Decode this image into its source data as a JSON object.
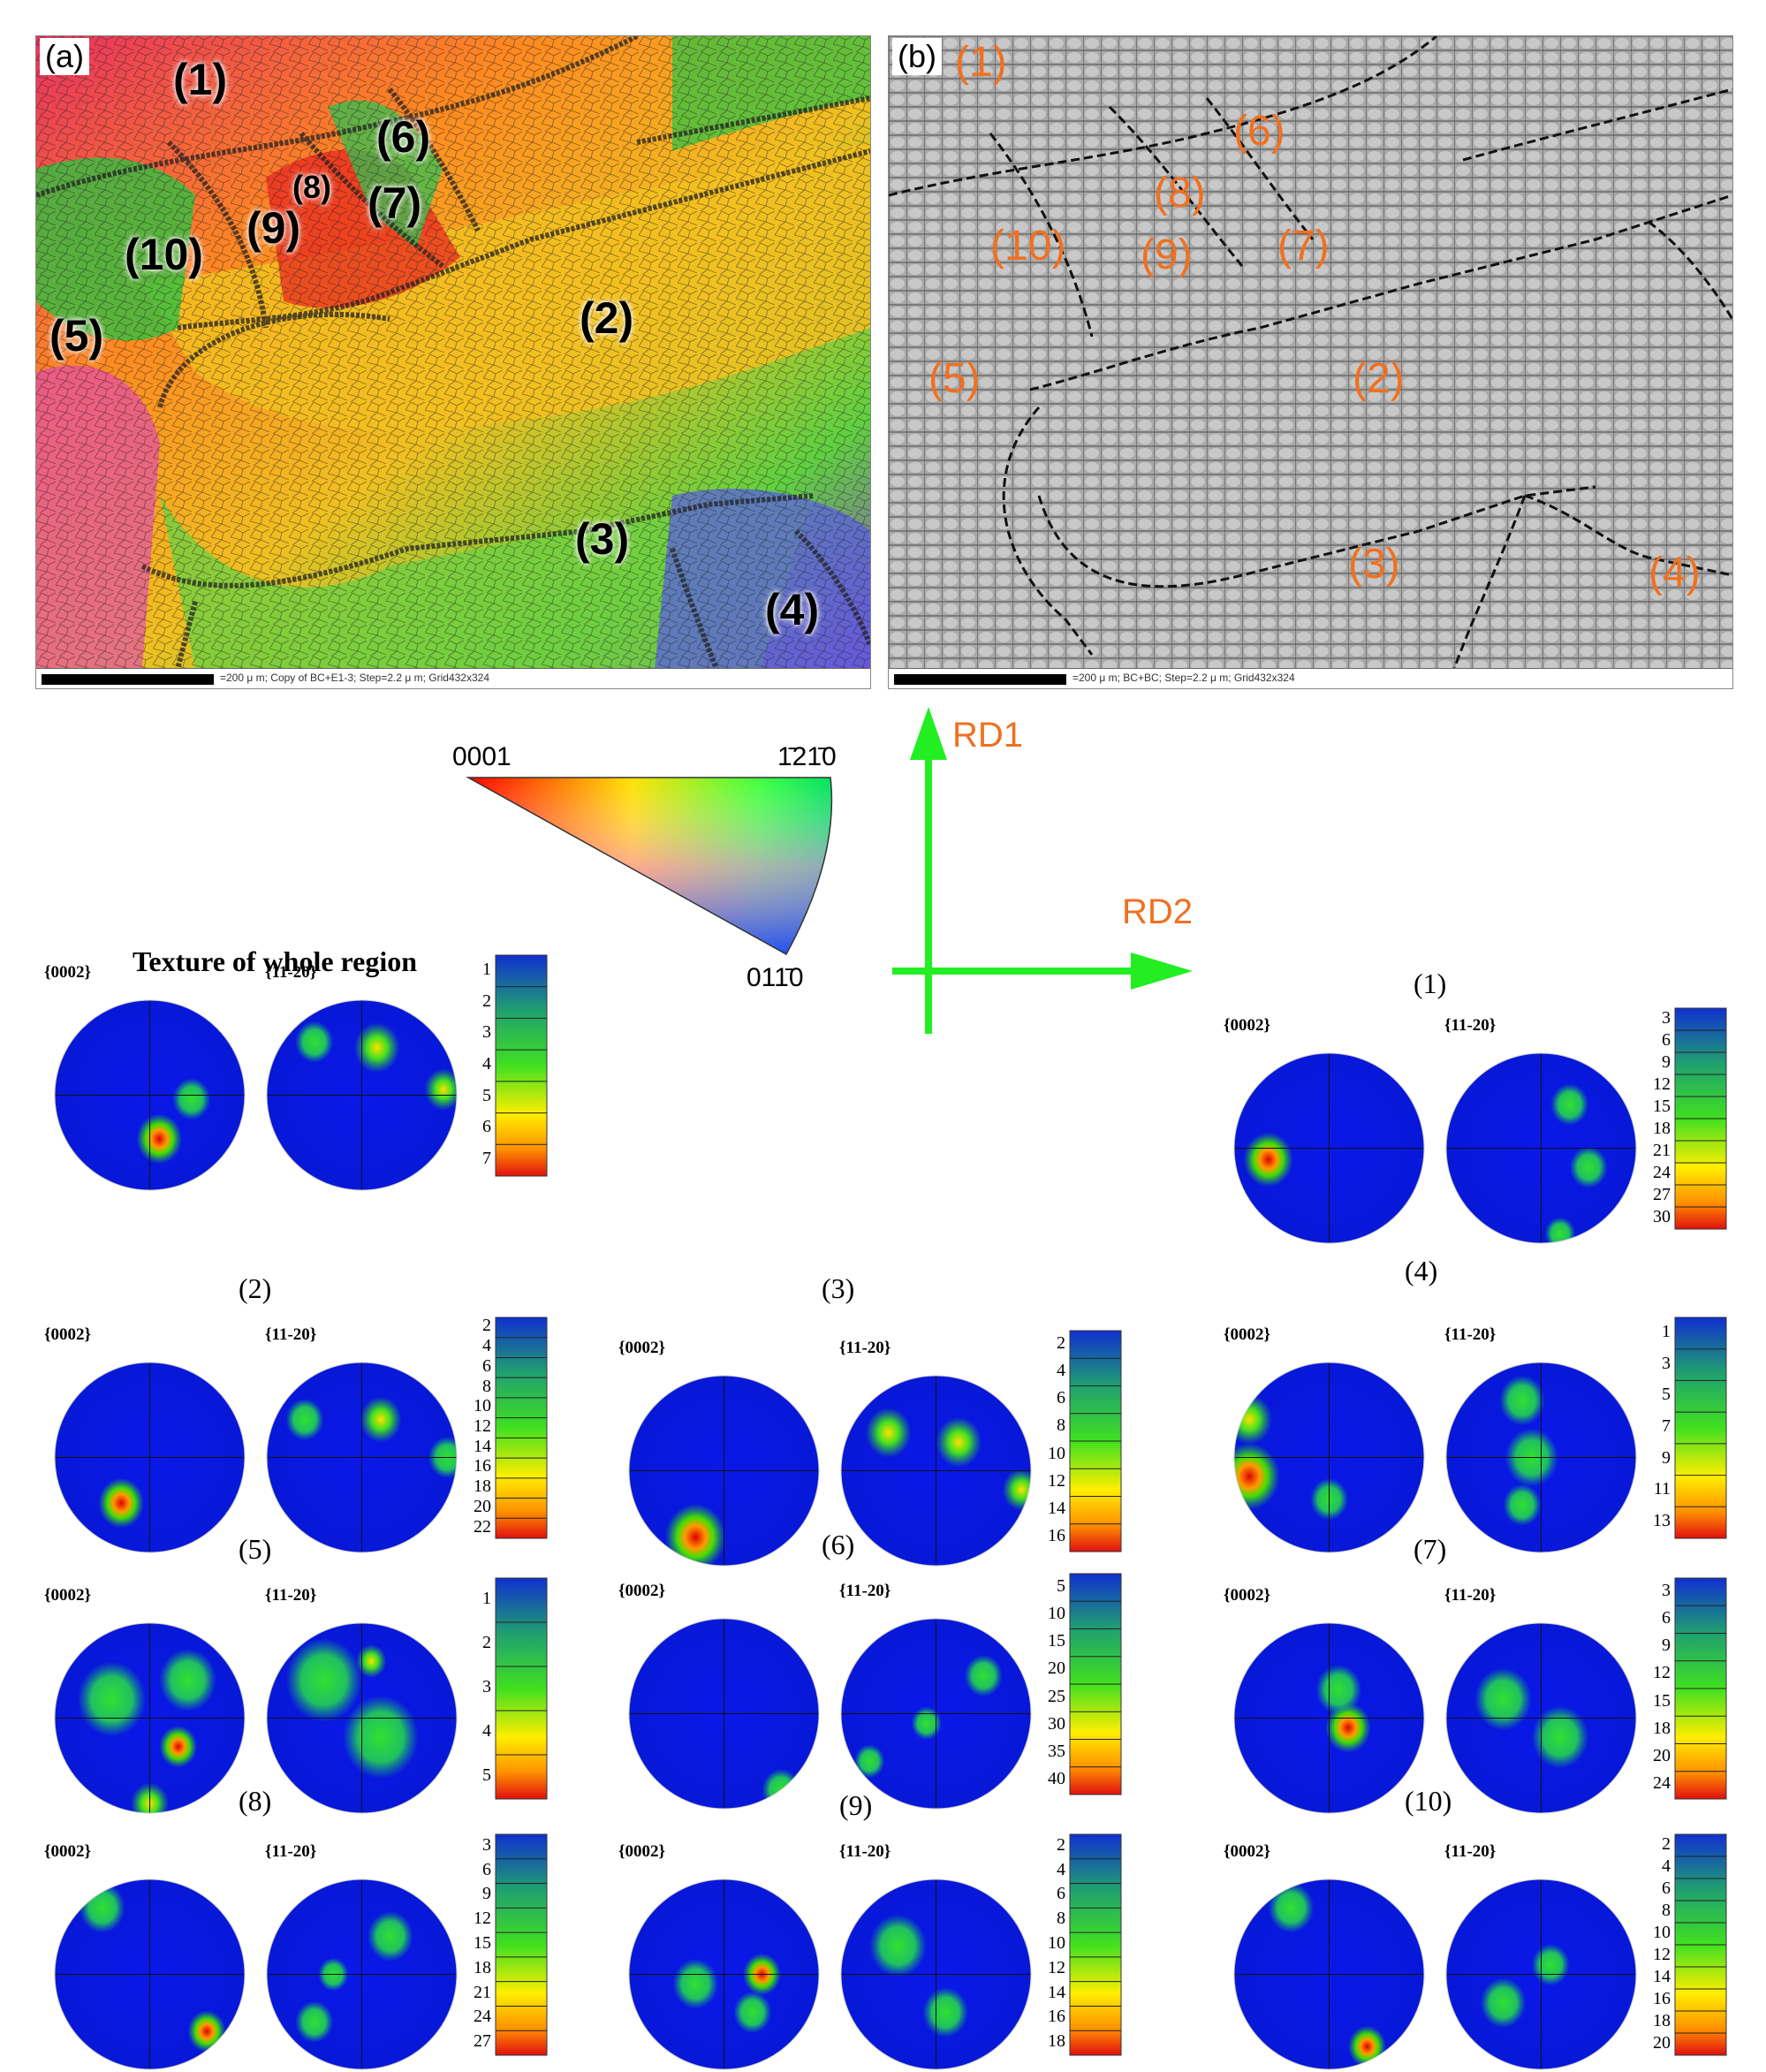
{
  "panels": {
    "a": {
      "label": "(a)",
      "scale_text": "=200 μ m; Copy of BC+E1-3; Step=2.2 μ m; Grid432x324",
      "regions": [
        "(1)",
        "(2)",
        "(3)",
        "(4)",
        "(5)",
        "(6)",
        "(7)",
        "(8)",
        "(9)",
        "(10)"
      ]
    },
    "b": {
      "label": "(b)",
      "scale_text": "=200 μ m; BC+BC; Step=2.2 μ m; Grid432x324",
      "regions": [
        "(1)",
        "(2)",
        "(3)",
        "(4)",
        "(5)",
        "(6)",
        "(7)",
        "(8)",
        "(9)",
        "(10)"
      ]
    }
  },
  "ipf_key": {
    "corner_0001": "0001",
    "corner_1210": "1̄21̄0",
    "corner_0110": "011̄0"
  },
  "axes": {
    "rd1": "RD1",
    "rd2": "RD2"
  },
  "pole_labels": {
    "basal": "{0002}",
    "prism": "{11-20}"
  },
  "groups": [
    {
      "id": "whole",
      "title": "Texture of whole region",
      "ticks": [
        "1",
        "2",
        "3",
        "4",
        "5",
        "6",
        "7"
      ]
    },
    {
      "id": "1",
      "title": "(1)",
      "ticks": [
        "3",
        "6",
        "9",
        "12",
        "15",
        "18",
        "21",
        "24",
        "27",
        "30"
      ]
    },
    {
      "id": "2",
      "title": "(2)",
      "ticks": [
        "2",
        "4",
        "6",
        "8",
        "10",
        "12",
        "14",
        "16",
        "18",
        "20",
        "22"
      ]
    },
    {
      "id": "3",
      "title": "(3)",
      "ticks": [
        "2",
        "4",
        "6",
        "8",
        "10",
        "12",
        "14",
        "16"
      ]
    },
    {
      "id": "4",
      "title": "(4)",
      "ticks": [
        "1",
        "3",
        "5",
        "7",
        "9",
        "11",
        "13"
      ]
    },
    {
      "id": "5",
      "title": "(5)",
      "ticks": [
        "1",
        "2",
        "3",
        "4",
        "5"
      ]
    },
    {
      "id": "6",
      "title": "(6)",
      "ticks": [
        "5",
        "10",
        "15",
        "20",
        "25",
        "30",
        "35",
        "40"
      ]
    },
    {
      "id": "7",
      "title": "(7)",
      "ticks": [
        "3",
        "6",
        "9",
        "12",
        "15",
        "18",
        "20",
        "24"
      ]
    },
    {
      "id": "8",
      "title": "(8)",
      "ticks": [
        "3",
        "6",
        "9",
        "12",
        "15",
        "18",
        "21",
        "24",
        "27"
      ]
    },
    {
      "id": "9",
      "title": "(9)",
      "ticks": [
        "2",
        "4",
        "6",
        "8",
        "10",
        "12",
        "14",
        "16",
        "18"
      ]
    },
    {
      "id": "10",
      "title": "(10)",
      "ticks": [
        "2",
        "4",
        "6",
        "8",
        "10",
        "12",
        "14",
        "16",
        "18",
        "20"
      ]
    }
  ],
  "colors": {
    "axis_arrow": "#22ee22",
    "orange_label": "#f07020"
  }
}
